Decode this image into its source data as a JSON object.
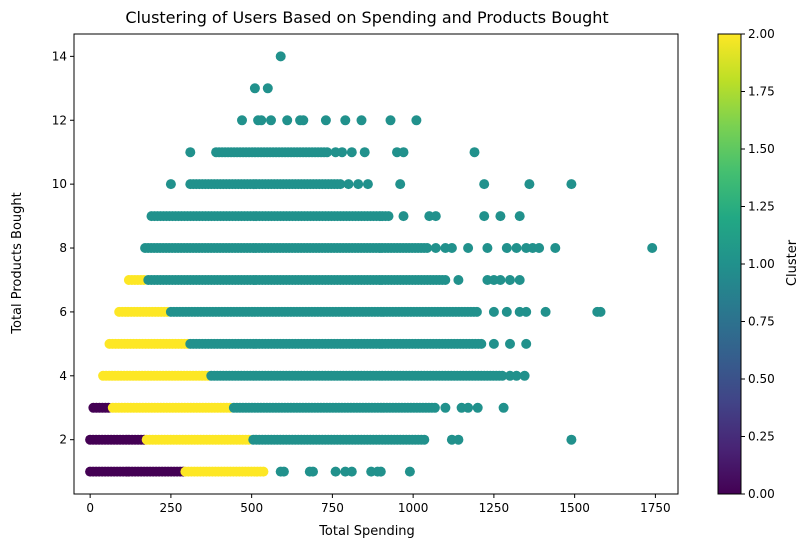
{
  "chart_data": {
    "type": "scatter",
    "title": "Clustering of Users Based on Spending and Products Bought",
    "xlabel": "Total Spending",
    "ylabel": "Total Products Bought",
    "xlim": [
      -50,
      1820
    ],
    "ylim": [
      0.3,
      14.7
    ],
    "xticks": [
      0,
      250,
      500,
      750,
      1000,
      1250,
      1500,
      1750
    ],
    "yticks": [
      2,
      4,
      6,
      8,
      10,
      12,
      14
    ],
    "grid": false,
    "colorbar": {
      "label": "Cluster",
      "range": [
        0,
        2
      ],
      "ticks": [
        "0.00",
        "0.25",
        "0.50",
        "0.75",
        "1.00",
        "1.25",
        "1.50",
        "1.75",
        "2.00"
      ],
      "colormap": "viridis"
    },
    "cluster_colors": {
      "0": "#440154",
      "1": "#21918c",
      "2": "#fde725"
    },
    "bands": [
      {
        "y": 1,
        "cluster": 0,
        "x_start": 0,
        "x_end": 290
      },
      {
        "y": 1,
        "cluster": 2,
        "x_start": 295,
        "x_end": 540
      },
      {
        "y": 2,
        "cluster": 0,
        "x_start": 0,
        "x_end": 170
      },
      {
        "y": 2,
        "cluster": 2,
        "x_start": 175,
        "x_end": 500
      },
      {
        "y": 2,
        "cluster": 1,
        "x_start": 505,
        "x_end": 1040
      },
      {
        "y": 3,
        "cluster": 0,
        "x_start": 10,
        "x_end": 65
      },
      {
        "y": 3,
        "cluster": 2,
        "x_start": 70,
        "x_end": 440
      },
      {
        "y": 3,
        "cluster": 1,
        "x_start": 445,
        "x_end": 1070
      },
      {
        "y": 4,
        "cluster": 2,
        "x_start": 40,
        "x_end": 370
      },
      {
        "y": 4,
        "cluster": 1,
        "x_start": 375,
        "x_end": 1280
      },
      {
        "y": 5,
        "cluster": 2,
        "x_start": 60,
        "x_end": 305
      },
      {
        "y": 5,
        "cluster": 1,
        "x_start": 310,
        "x_end": 1220
      },
      {
        "y": 6,
        "cluster": 2,
        "x_start": 90,
        "x_end": 245
      },
      {
        "y": 6,
        "cluster": 1,
        "x_start": 250,
        "x_end": 1200
      },
      {
        "y": 7,
        "cluster": 2,
        "x_start": 120,
        "x_end": 175
      },
      {
        "y": 7,
        "cluster": 1,
        "x_start": 180,
        "x_end": 1100
      },
      {
        "y": 8,
        "cluster": 1,
        "x_start": 170,
        "x_end": 1050
      },
      {
        "y": 9,
        "cluster": 1,
        "x_start": 190,
        "x_end": 930
      },
      {
        "y": 10,
        "cluster": 1,
        "x_start": 310,
        "x_end": 780
      },
      {
        "y": 11,
        "cluster": 1,
        "x_start": 390,
        "x_end": 740
      }
    ],
    "points": [
      {
        "x": 590,
        "y": 1,
        "cluster": 1
      },
      {
        "x": 600,
        "y": 1,
        "cluster": 1
      },
      {
        "x": 680,
        "y": 1,
        "cluster": 1
      },
      {
        "x": 690,
        "y": 1,
        "cluster": 1
      },
      {
        "x": 760,
        "y": 1,
        "cluster": 1
      },
      {
        "x": 790,
        "y": 1,
        "cluster": 1
      },
      {
        "x": 810,
        "y": 1,
        "cluster": 1
      },
      {
        "x": 870,
        "y": 1,
        "cluster": 1
      },
      {
        "x": 890,
        "y": 1,
        "cluster": 1
      },
      {
        "x": 900,
        "y": 1,
        "cluster": 1
      },
      {
        "x": 990,
        "y": 1,
        "cluster": 1
      },
      {
        "x": 1120,
        "y": 2,
        "cluster": 1
      },
      {
        "x": 1140,
        "y": 2,
        "cluster": 1
      },
      {
        "x": 1490,
        "y": 2,
        "cluster": 1
      },
      {
        "x": 1100,
        "y": 3,
        "cluster": 1
      },
      {
        "x": 1150,
        "y": 3,
        "cluster": 1
      },
      {
        "x": 1170,
        "y": 3,
        "cluster": 1
      },
      {
        "x": 1200,
        "y": 3,
        "cluster": 1
      },
      {
        "x": 1280,
        "y": 3,
        "cluster": 1
      },
      {
        "x": 1300,
        "y": 4,
        "cluster": 1
      },
      {
        "x": 1320,
        "y": 4,
        "cluster": 1
      },
      {
        "x": 1345,
        "y": 4,
        "cluster": 1
      },
      {
        "x": 1250,
        "y": 5,
        "cluster": 1
      },
      {
        "x": 1300,
        "y": 5,
        "cluster": 1
      },
      {
        "x": 1350,
        "y": 5,
        "cluster": 1
      },
      {
        "x": 1250,
        "y": 6,
        "cluster": 1
      },
      {
        "x": 1290,
        "y": 6,
        "cluster": 1
      },
      {
        "x": 1330,
        "y": 6,
        "cluster": 1
      },
      {
        "x": 1350,
        "y": 6,
        "cluster": 1
      },
      {
        "x": 1410,
        "y": 6,
        "cluster": 1
      },
      {
        "x": 1570,
        "y": 6,
        "cluster": 1
      },
      {
        "x": 1580,
        "y": 6,
        "cluster": 1
      },
      {
        "x": 1140,
        "y": 7,
        "cluster": 1
      },
      {
        "x": 1230,
        "y": 7,
        "cluster": 1
      },
      {
        "x": 1250,
        "y": 7,
        "cluster": 1
      },
      {
        "x": 1270,
        "y": 7,
        "cluster": 1
      },
      {
        "x": 1300,
        "y": 7,
        "cluster": 1
      },
      {
        "x": 1330,
        "y": 7,
        "cluster": 1
      },
      {
        "x": 1070,
        "y": 8,
        "cluster": 1
      },
      {
        "x": 1100,
        "y": 8,
        "cluster": 1
      },
      {
        "x": 1120,
        "y": 8,
        "cluster": 1
      },
      {
        "x": 1170,
        "y": 8,
        "cluster": 1
      },
      {
        "x": 1230,
        "y": 8,
        "cluster": 1
      },
      {
        "x": 1290,
        "y": 8,
        "cluster": 1
      },
      {
        "x": 1320,
        "y": 8,
        "cluster": 1
      },
      {
        "x": 1350,
        "y": 8,
        "cluster": 1
      },
      {
        "x": 1370,
        "y": 8,
        "cluster": 1
      },
      {
        "x": 1390,
        "y": 8,
        "cluster": 1
      },
      {
        "x": 1440,
        "y": 8,
        "cluster": 1
      },
      {
        "x": 1740,
        "y": 8,
        "cluster": 1
      },
      {
        "x": 970,
        "y": 9,
        "cluster": 1
      },
      {
        "x": 1050,
        "y": 9,
        "cluster": 1
      },
      {
        "x": 1070,
        "y": 9,
        "cluster": 1
      },
      {
        "x": 1220,
        "y": 9,
        "cluster": 1
      },
      {
        "x": 1270,
        "y": 9,
        "cluster": 1
      },
      {
        "x": 1330,
        "y": 9,
        "cluster": 1
      },
      {
        "x": 250,
        "y": 10,
        "cluster": 1
      },
      {
        "x": 800,
        "y": 10,
        "cluster": 1
      },
      {
        "x": 830,
        "y": 10,
        "cluster": 1
      },
      {
        "x": 860,
        "y": 10,
        "cluster": 1
      },
      {
        "x": 960,
        "y": 10,
        "cluster": 1
      },
      {
        "x": 1220,
        "y": 10,
        "cluster": 1
      },
      {
        "x": 1360,
        "y": 10,
        "cluster": 1
      },
      {
        "x": 1490,
        "y": 10,
        "cluster": 1
      },
      {
        "x": 310,
        "y": 11,
        "cluster": 1
      },
      {
        "x": 760,
        "y": 11,
        "cluster": 1
      },
      {
        "x": 780,
        "y": 11,
        "cluster": 1
      },
      {
        "x": 810,
        "y": 11,
        "cluster": 1
      },
      {
        "x": 850,
        "y": 11,
        "cluster": 1
      },
      {
        "x": 950,
        "y": 11,
        "cluster": 1
      },
      {
        "x": 970,
        "y": 11,
        "cluster": 1
      },
      {
        "x": 1190,
        "y": 11,
        "cluster": 1
      },
      {
        "x": 470,
        "y": 12,
        "cluster": 1
      },
      {
        "x": 520,
        "y": 12,
        "cluster": 1
      },
      {
        "x": 530,
        "y": 12,
        "cluster": 1
      },
      {
        "x": 560,
        "y": 12,
        "cluster": 1
      },
      {
        "x": 610,
        "y": 12,
        "cluster": 1
      },
      {
        "x": 650,
        "y": 12,
        "cluster": 1
      },
      {
        "x": 660,
        "y": 12,
        "cluster": 1
      },
      {
        "x": 730,
        "y": 12,
        "cluster": 1
      },
      {
        "x": 790,
        "y": 12,
        "cluster": 1
      },
      {
        "x": 840,
        "y": 12,
        "cluster": 1
      },
      {
        "x": 930,
        "y": 12,
        "cluster": 1
      },
      {
        "x": 1010,
        "y": 12,
        "cluster": 1
      },
      {
        "x": 510,
        "y": 13,
        "cluster": 1
      },
      {
        "x": 550,
        "y": 13,
        "cluster": 1
      },
      {
        "x": 590,
        "y": 14,
        "cluster": 1
      }
    ]
  }
}
